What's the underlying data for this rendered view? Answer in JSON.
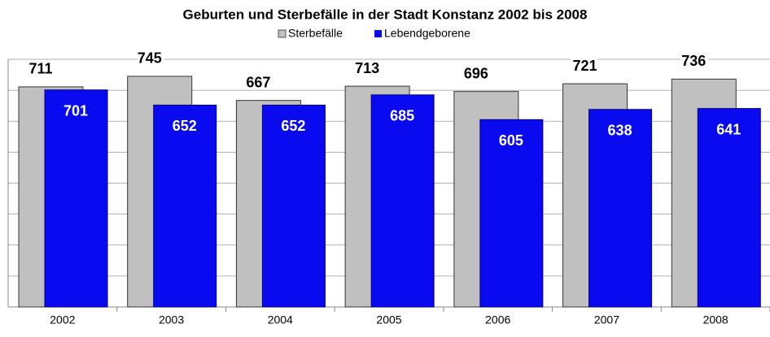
{
  "chart_data": {
    "type": "bar",
    "title": "Geburten und Sterbefälle in der Stadt Konstanz 2002 bis 2008",
    "categories": [
      "2002",
      "2003",
      "2004",
      "2005",
      "2006",
      "2007",
      "2008"
    ],
    "series": [
      {
        "name": "Sterbefälle",
        "color": "#c0c0c0",
        "values": [
          711,
          745,
          667,
          713,
          696,
          721,
          736
        ]
      },
      {
        "name": "Lebendgeborene",
        "color": "#0a0af0",
        "values": [
          701,
          652,
          652,
          685,
          605,
          638,
          641
        ]
      }
    ],
    "ylim": [
      0,
      800
    ],
    "yticks": [
      0,
      100,
      200,
      300,
      400,
      500,
      600,
      700,
      800
    ],
    "grid": true
  }
}
